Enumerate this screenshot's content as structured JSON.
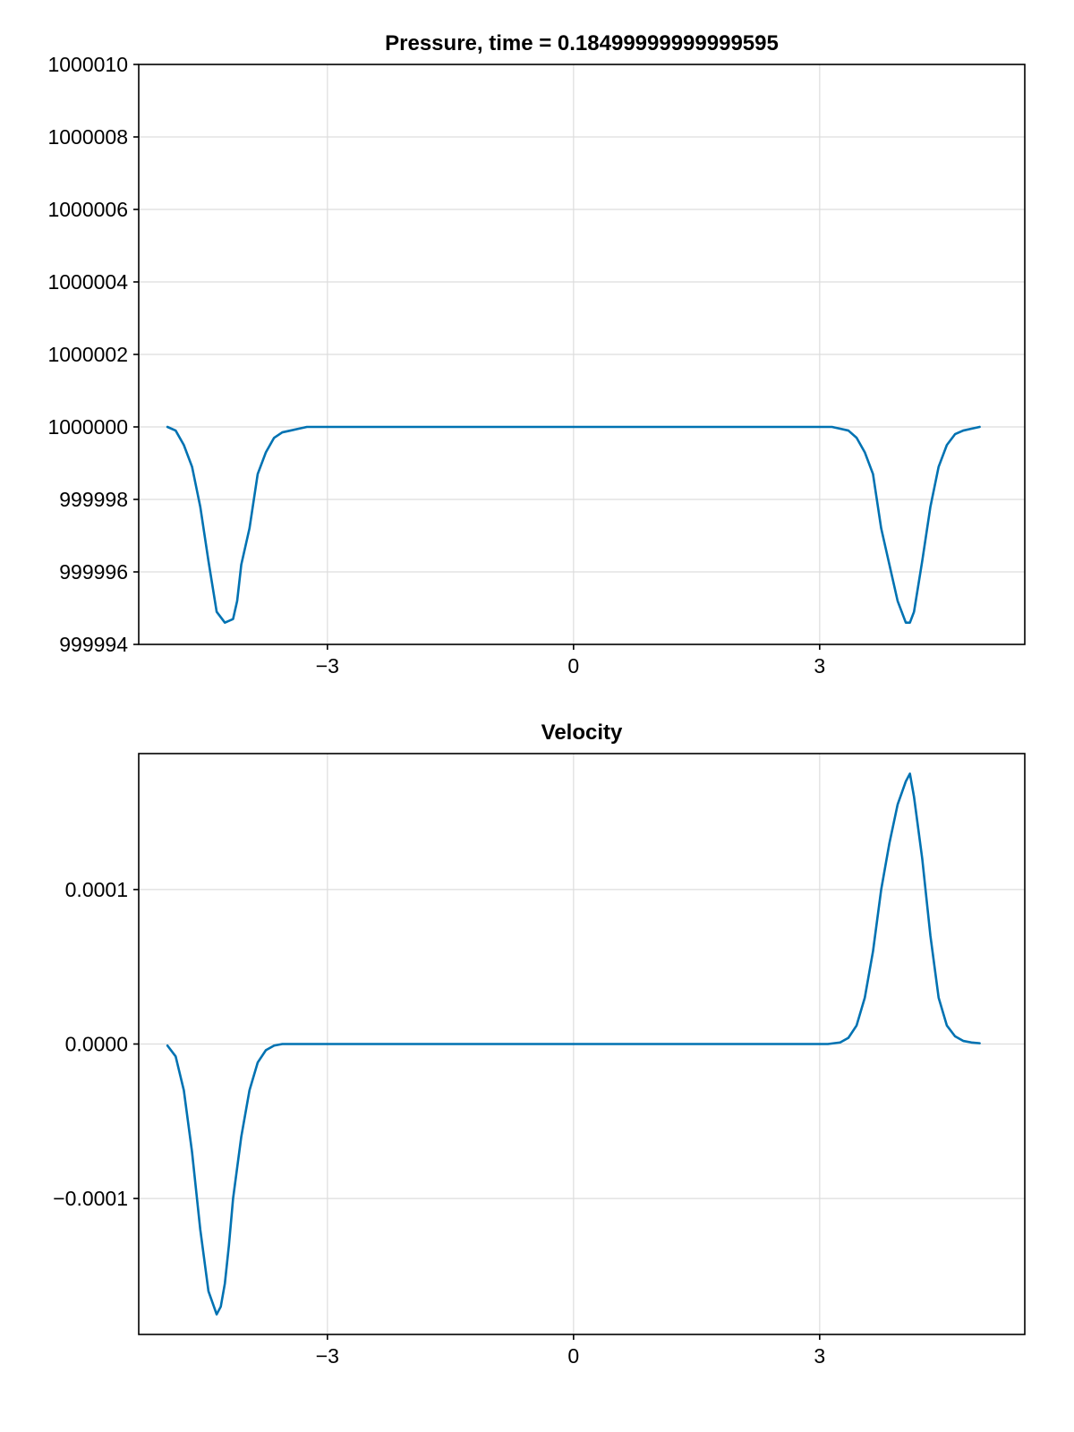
{
  "colors": {
    "line": "#0072b2",
    "grid": "#dddddd",
    "frame": "#000000",
    "background": "#ffffff"
  },
  "chart_data": [
    {
      "type": "line",
      "title": "Pressure, time = 0.18499999999999595",
      "xlabel": "",
      "ylabel": "",
      "xlim": [
        -5.3,
        5.5
      ],
      "ylim": [
        999994,
        1000010
      ],
      "x_ticks": [
        -3,
        0,
        3
      ],
      "x_tick_labels": [
        "−3",
        "0",
        "3"
      ],
      "y_ticks": [
        999994,
        999996,
        999998,
        1000000,
        1000002,
        1000004,
        1000006,
        1000008,
        1000010
      ],
      "y_tick_labels": [
        "999994",
        "999996",
        "999998",
        "1000000",
        "1000002",
        "1000004",
        "1000006",
        "1000008",
        "1000010"
      ],
      "grid": true,
      "series": [
        {
          "x": [
            -4.95,
            -4.85,
            -4.75,
            -4.65,
            -4.55,
            -4.45,
            -4.35,
            -4.25,
            -4.15,
            -4.1,
            -4.05,
            -3.95,
            -3.85,
            -3.75,
            -3.65,
            -3.55,
            -3.45,
            -3.35,
            -3.25,
            -3.15,
            -3.0,
            -2.0,
            -1.0,
            0.0,
            1.0,
            2.0,
            3.0,
            3.15,
            3.25,
            3.35,
            3.45,
            3.55,
            3.65,
            3.75,
            3.85,
            3.95,
            4.05,
            4.1,
            4.15,
            4.25,
            4.35,
            4.45,
            4.55,
            4.65,
            4.75,
            4.85,
            4.95
          ],
          "y": [
            1000000,
            999999.9,
            999999.5,
            999998.9,
            999997.8,
            999996.3,
            999994.9,
            999994.6,
            999994.7,
            999995.2,
            999996.2,
            999997.2,
            999998.7,
            999999.3,
            999999.7,
            999999.85,
            999999.9,
            999999.95,
            1000000,
            1000000,
            1000000,
            1000000,
            1000000,
            1000000,
            1000000,
            1000000,
            1000000,
            1000000,
            999999.95,
            999999.9,
            999999.7,
            999999.3,
            999998.7,
            999997.2,
            999996.2,
            999995.2,
            999994.6,
            999994.6,
            999994.9,
            999996.3,
            999997.8,
            999998.9,
            999999.5,
            999999.8,
            999999.9,
            999999.95,
            1000000
          ]
        }
      ]
    },
    {
      "type": "line",
      "title": "Velocity",
      "xlabel": "",
      "ylabel": "",
      "xlim": [
        -5.3,
        5.5
      ],
      "ylim": [
        -0.000188,
        0.000188
      ],
      "x_ticks": [
        -3,
        0,
        3
      ],
      "x_tick_labels": [
        "−3",
        "0",
        "3"
      ],
      "y_ticks": [
        -0.0001,
        0.0,
        0.0001
      ],
      "y_tick_labels": [
        "−0.0001",
        "0.0000",
        "0.0001"
      ],
      "grid": true,
      "series": [
        {
          "x": [
            -4.95,
            -4.85,
            -4.75,
            -4.65,
            -4.55,
            -4.45,
            -4.35,
            -4.3,
            -4.25,
            -4.2,
            -4.15,
            -4.05,
            -3.95,
            -3.85,
            -3.75,
            -3.65,
            -3.55,
            -3.45,
            -3.35,
            -3.25,
            -3.1,
            -3.0,
            -2.0,
            -1.0,
            0.0,
            1.0,
            2.0,
            3.0,
            3.1,
            3.25,
            3.35,
            3.45,
            3.55,
            3.65,
            3.75,
            3.85,
            3.95,
            4.05,
            4.1,
            4.15,
            4.25,
            4.35,
            4.45,
            4.55,
            4.65,
            4.75,
            4.85,
            4.95
          ],
          "y": [
            -1e-06,
            -8e-06,
            -3e-05,
            -7e-05,
            -0.00012,
            -0.00016,
            -0.000175,
            -0.00017,
            -0.000155,
            -0.00013,
            -0.0001,
            -6e-05,
            -3e-05,
            -1.2e-05,
            -4e-06,
            -1e-06,
            0.0,
            0.0,
            0.0,
            0.0,
            0.0,
            0.0,
            0.0,
            0.0,
            0.0,
            0.0,
            0.0,
            0.0,
            0.0,
            1e-06,
            4e-06,
            1.2e-05,
            3e-05,
            6e-05,
            0.0001,
            0.00013,
            0.000155,
            0.00017,
            0.000175,
            0.00016,
            0.00012,
            7e-05,
            3e-05,
            1.2e-05,
            5e-06,
            2e-06,
            1e-06,
            5e-07
          ]
        }
      ]
    }
  ]
}
